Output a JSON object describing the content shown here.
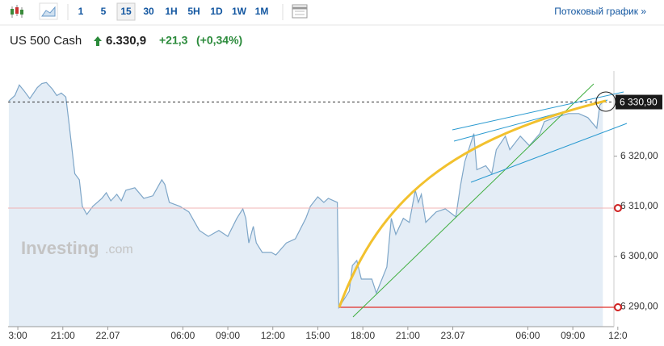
{
  "toolbar": {
    "intervals": [
      "1",
      "5",
      "15",
      "30",
      "1H",
      "5H",
      "1D",
      "1W",
      "1M"
    ],
    "selected": "15",
    "streaming_link": "Потоковый график »"
  },
  "header": {
    "instrument": "US 500 Cash",
    "price": "6.330,9",
    "change": "+21,3",
    "change_percent": "(+0,34%)"
  },
  "watermark": {
    "brand": "Investing",
    "suffix": ".com"
  },
  "chart_data": {
    "type": "area",
    "color": "#7ea6c8",
    "fill": "#e4edf6",
    "last_price_label": "6 330,90",
    "xlim": [
      -0.65,
      39.74
    ],
    "ylim": [
      6286,
      6337
    ],
    "xticks": [
      {
        "value": 0,
        "label": "3:00"
      },
      {
        "value": 3,
        "label": "21:00"
      },
      {
        "value": 6,
        "label": "22.07"
      },
      {
        "value": 11,
        "label": "06:00"
      },
      {
        "value": 14,
        "label": "09:00"
      },
      {
        "value": 17,
        "label": "12:00"
      },
      {
        "value": 20,
        "label": "15:00"
      },
      {
        "value": 23,
        "label": "18:00"
      },
      {
        "value": 26,
        "label": "21:00"
      },
      {
        "value": 29,
        "label": "23.07"
      },
      {
        "value": 34,
        "label": "06:00"
      },
      {
        "value": 37,
        "label": "09:00"
      },
      {
        "value": 40,
        "label": "12:0"
      }
    ],
    "yticks": [
      {
        "value": 6290,
        "label": "6 290,00"
      },
      {
        "value": 6300,
        "label": "6 300,00"
      },
      {
        "value": 6310,
        "label": "6 310,00"
      },
      {
        "value": 6320,
        "label": "6 320,00"
      }
    ],
    "x": [
      -0.6,
      -0.2,
      0.1,
      0.4,
      0.8,
      1.3,
      1.6,
      1.9,
      2.3,
      2.6,
      2.9,
      3.2,
      3.4,
      3.8,
      4.1,
      4.3,
      4.6,
      5.0,
      5.6,
      5.9,
      6.2,
      6.6,
      6.9,
      7.2,
      7.8,
      8.4,
      9.0,
      9.6,
      9.8,
      10.1,
      10.8,
      11.4,
      12.1,
      12.7,
      13.4,
      14.0,
      14.6,
      15.0,
      15.2,
      15.4,
      15.7,
      15.9,
      16.3,
      16.9,
      17.2,
      17.9,
      18.5,
      19.2,
      19.5,
      20.0,
      20.4,
      20.7,
      21.3,
      21.4,
      22.1,
      22.3,
      22.6,
      22.9,
      23.6,
      23.9,
      24.6,
      24.9,
      25.2,
      25.7,
      26.1,
      26.5,
      26.7,
      26.9,
      27.2,
      27.9,
      28.5,
      29.2,
      29.5,
      29.8,
      30.4,
      30.6,
      31.2,
      31.6,
      31.9,
      32.5,
      32.8,
      33.5,
      34.1,
      34.8,
      35.1,
      35.8,
      36.7,
      37.4,
      38.0,
      38.6,
      38.8,
      39.0
    ],
    "values": [
      6331.0,
      6332.1,
      6334.2,
      6333.1,
      6331.5,
      6333.7,
      6334.5,
      6334.7,
      6333.4,
      6332.1,
      6332.6,
      6331.8,
      6326.9,
      6316.5,
      6315.3,
      6310.0,
      6308.4,
      6310.0,
      6311.6,
      6312.7,
      6311.1,
      6312.4,
      6311.1,
      6313.2,
      6313.7,
      6311.6,
      6312.1,
      6315.3,
      6314.4,
      6310.8,
      6310.0,
      6308.9,
      6305.2,
      6304.0,
      6305.2,
      6304.0,
      6307.6,
      6309.5,
      6307.6,
      6302.7,
      6306.0,
      6302.7,
      6300.8,
      6300.8,
      6300.3,
      6302.7,
      6303.5,
      6307.6,
      6310.0,
      6311.9,
      6310.8,
      6311.6,
      6310.8,
      6289.8,
      6293.1,
      6298.2,
      6299.2,
      6295.5,
      6295.5,
      6292.7,
      6297.9,
      6307.6,
      6304.4,
      6307.6,
      6306.8,
      6313.2,
      6310.8,
      6312.4,
      6306.8,
      6308.9,
      6309.5,
      6307.9,
      6314.0,
      6318.9,
      6324.5,
      6317.3,
      6318.1,
      6316.5,
      6321.3,
      6324.0,
      6321.3,
      6324.0,
      6322.1,
      6324.5,
      6326.9,
      6327.7,
      6328.5,
      6328.5,
      6327.7,
      6325.6,
      6330.2,
      6330.8
    ]
  }
}
